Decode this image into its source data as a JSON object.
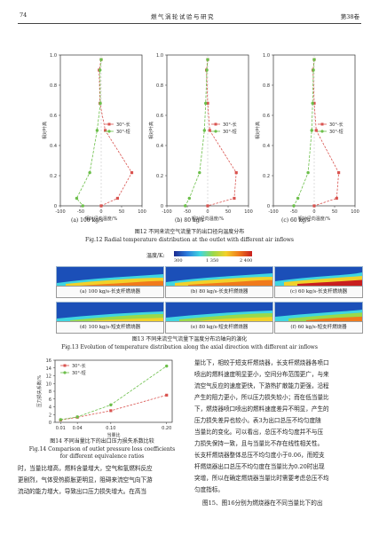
{
  "header": {
    "page_number": "74",
    "journal": "燃气涡轮试验与研究",
    "volume": "第38卷"
  },
  "fig12": {
    "caption_cn": "图12  不同来流空气流量下的出口径向温度分布",
    "caption_en": "Fig.12  Radial temperature distribution at the outlet with different air inflows",
    "sub_labels": [
      "(a) 100 kg/s",
      "(b) 80 kg/s",
      "(c) 60 kg/s"
    ],
    "chart_data": [
      {
        "type": "line",
        "xlabel": "相对径向温度/%",
        "ylabel": "相对叶高",
        "xlim": [
          -100,
          100
        ],
        "ylim": [
          0,
          1
        ],
        "y_ticks": [
          "0",
          "0.2",
          "0.4",
          "0.6",
          "0.8",
          "1.0"
        ],
        "x_ticks": [
          "-100",
          "-50",
          "0",
          "50",
          "100"
        ],
        "series": [
          {
            "name": "30°-长",
            "color": "#d9534f",
            "x": [
              0,
              -5,
              -3,
              10,
              75,
              40,
              0
            ],
            "y": [
              0.97,
              0.9,
              0.68,
              0.5,
              0.22,
              0.05,
              0.0
            ]
          },
          {
            "name": "30°-短",
            "color": "#6cbf4a",
            "x": [
              0,
              -3,
              -2,
              -10,
              -28,
              -60,
              -45
            ],
            "y": [
              0.97,
              0.9,
              0.68,
              0.5,
              0.22,
              0.05,
              0.0
            ]
          }
        ]
      },
      {
        "type": "line",
        "xlabel": "相对径向温度/%",
        "ylabel": "相对叶高",
        "xlim": [
          -100,
          100
        ],
        "ylim": [
          0,
          1
        ],
        "y_ticks": [
          "0",
          "0.2",
          "0.4",
          "0.6",
          "0.8",
          "1.0"
        ],
        "x_ticks": [
          "-100",
          "-50",
          "0",
          "50",
          "100"
        ],
        "series": [
          {
            "name": "30°-长",
            "color": "#d9534f",
            "x": [
              0,
              -3,
              0,
              5,
              70,
              65,
              0
            ],
            "y": [
              0.97,
              0.9,
              0.68,
              0.5,
              0.22,
              0.05,
              0.0
            ]
          },
          {
            "name": "30°-短",
            "color": "#6cbf4a",
            "x": [
              0,
              -2,
              -5,
              -8,
              -20,
              -45,
              -55
            ],
            "y": [
              0.97,
              0.9,
              0.68,
              0.5,
              0.22,
              0.05,
              0.0
            ]
          }
        ]
      },
      {
        "type": "line",
        "xlabel": "相对径向温度/%",
        "ylabel": "相对叶高",
        "xlim": [
          -100,
          100
        ],
        "ylim": [
          0,
          1
        ],
        "y_ticks": [
          "0",
          "0.2",
          "0.4",
          "0.6",
          "0.8",
          "1.0"
        ],
        "x_ticks": [
          "-100",
          "-50",
          "0",
          "50",
          "100"
        ],
        "series": [
          {
            "name": "30°-长",
            "color": "#d9534f",
            "x": [
              0,
              -3,
              0,
              5,
              60,
              55,
              0
            ],
            "y": [
              0.97,
              0.9,
              0.68,
              0.5,
              0.22,
              0.05,
              0.0
            ]
          },
          {
            "name": "30°-短",
            "color": "#6cbf4a",
            "x": [
              0,
              -2,
              -4,
              -6,
              -15,
              -40,
              -50
            ],
            "y": [
              0.97,
              0.9,
              0.68,
              0.5,
              0.22,
              0.05,
              0.0
            ]
          }
        ]
      }
    ]
  },
  "fig13": {
    "colorbar_title": "温度/K:",
    "colorbar_ticks": [
      "300",
      "1 350",
      "2 400"
    ],
    "panels": [
      "(a) 100 kg/s-长支杆燃烧器",
      "(b) 80 kg/s-长支杆燃烧器",
      "(c) 60 kg/s-长支杆燃烧器",
      "(d) 100 kg/s-短支杆燃烧器",
      "(e) 80 kg/s-短支杆燃烧器",
      "(f) 60 kg/s-短支杆燃烧器"
    ],
    "caption_cn": "图13  不同来流空气流量下温度分布沿轴向的演化",
    "caption_en": "Fig.13  Evolution of temperature distribution along the axial direction with different air inflows"
  },
  "fig14": {
    "caption_cn": "图14  不同当量比下的出口压力损失系数比较",
    "caption_en_1": "Fig.14  Comparison of outlet pressure loss coefficients",
    "caption_en_2": "for different equivalence ratios",
    "chart_data": {
      "type": "line",
      "xlabel": "当量比",
      "ylabel": "压力损失系数/%",
      "x": [
        0.01,
        0.04,
        0.1,
        0.2
      ],
      "x_ticks": [
        "0.01",
        "0.04",
        "0.10",
        "0.20"
      ],
      "ylim": [
        0,
        16
      ],
      "y_ticks": [
        "0",
        "2",
        "4",
        "6",
        "8",
        "10",
        "12",
        "14",
        "16"
      ],
      "series": [
        {
          "name": "30°-长",
          "color": "#d9534f",
          "values": [
            0.6,
            1.3,
            3.0,
            7.0
          ]
        },
        {
          "name": "30°-短",
          "color": "#6cbf4a",
          "values": [
            0.7,
            1.4,
            4.5,
            14.5
          ]
        }
      ]
    }
  },
  "text": {
    "left_1": "时，当量比增高，燃料含量增大，空气和氢燃料反应",
    "left_2": "更剧烈，气体受热膨胀更明显，阻碍来流空气向下游",
    "left_3": "流动的能力增大，导致出口压力损失增大。在高当",
    "right": [
      "量比下，相较于短支杆燃烧器，长支杆燃烧器各喷口",
      "喷出的燃料速度明显更小，空间分布范围更广，与来",
      "流空气反应的速度更快，下游热扩散能力更强，沿程",
      "产生的阻力更小，所以压力损失较小；而在低当量比",
      "下，燃烧器喷口喷出的燃料速度差异不明显，产生的",
      "压力损失差异也较小。表3为出口总压不均匀度随",
      "当量比的变化。可以看出，总压不均匀度并不与压",
      "力损失保持一致，且与当量比不存在线性相关性。",
      "长支杆燃烧器整体总压不均匀度小于0.06，而短支",
      "杆燃烧器出口总压不均匀度在当量比为0.20时出现",
      "突增，所以在确定燃烧器当量比时需要考虑总压不均",
      "匀度指标。"
    ],
    "last_line": "图15、图16分别为燃烧器在不同当量比下的出"
  }
}
